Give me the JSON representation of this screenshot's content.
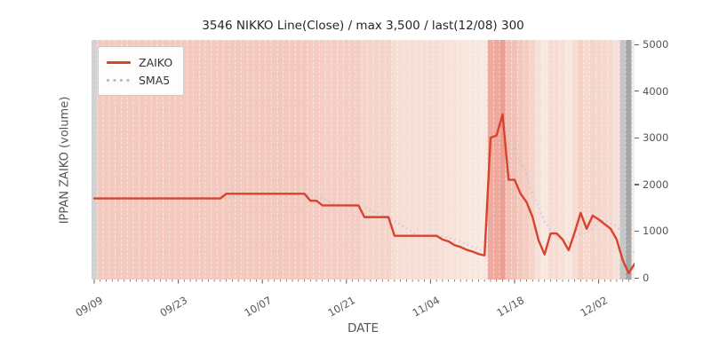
{
  "title": "3546 NIKKO Line(Close) / max 3,500 / last(12/08) 300",
  "axes": {
    "x_label": "DATE",
    "y_label": "IPPAN ZAIKO (volume)"
  },
  "legend": {
    "items": [
      {
        "label": "ZAIKO",
        "color": "#d9432e",
        "style": "solid"
      },
      {
        "label": "SMA5",
        "color": "#a5c8e1",
        "style": "dotted"
      }
    ]
  },
  "colors": {
    "zaiko_line": "#d9432e",
    "sma5_line": "#a5c8e1",
    "band_low": "#f8ede5",
    "band_high": "#ee9e90",
    "band_separator": "rgba(255,255,255,0.55)",
    "tick": "#666666",
    "tick_text": "#545454"
  },
  "chart_data": {
    "type": "line",
    "title": "3546 NIKKO Line(Close) / max 3,500 / last(12/08) 300",
    "xlabel": "DATE",
    "ylabel": "IPPAN ZAIKO (volume)",
    "ylim": [
      0,
      5000
    ],
    "y_tick_labels": [
      "0",
      "1000",
      "2000",
      "3000",
      "4000",
      "5000"
    ],
    "x_tick_labels": [
      "09/09",
      "09/23",
      "10/07",
      "10/21",
      "11/04",
      "11/18",
      "12/02"
    ],
    "x_major_tick_every_days": 14,
    "legend_position": "upper left",
    "grid": false,
    "background": {
      "note": "one vertical band per day, red intensity follows ZAIKO value",
      "gray_day_colors": {
        "0": "#d2d2d2",
        "88": "#c6c6c6",
        "89": "#a6a6a6"
      }
    },
    "x": [
      "09/09",
      "09/10",
      "09/11",
      "09/12",
      "09/13",
      "09/14",
      "09/15",
      "09/16",
      "09/17",
      "09/18",
      "09/19",
      "09/20",
      "09/21",
      "09/22",
      "09/23",
      "09/24",
      "09/25",
      "09/26",
      "09/27",
      "09/28",
      "09/29",
      "09/30",
      "10/01",
      "10/02",
      "10/03",
      "10/04",
      "10/05",
      "10/06",
      "10/07",
      "10/08",
      "10/09",
      "10/10",
      "10/11",
      "10/12",
      "10/13",
      "10/14",
      "10/15",
      "10/16",
      "10/17",
      "10/18",
      "10/19",
      "10/20",
      "10/21",
      "10/22",
      "10/23",
      "10/24",
      "10/25",
      "10/26",
      "10/27",
      "10/28",
      "10/29",
      "10/30",
      "10/31",
      "11/01",
      "11/02",
      "11/03",
      "11/04",
      "11/05",
      "11/06",
      "11/07",
      "11/08",
      "11/09",
      "11/10",
      "11/11",
      "11/12",
      "11/13",
      "11/14",
      "11/15",
      "11/16",
      "11/17",
      "11/18",
      "11/19",
      "11/20",
      "11/21",
      "11/22",
      "11/23",
      "11/24",
      "11/25",
      "11/26",
      "11/27",
      "11/28",
      "11/29",
      "11/30",
      "12/01",
      "12/02",
      "12/03",
      "12/04",
      "12/05",
      "12/06",
      "12/07",
      "12/08"
    ],
    "series": [
      {
        "name": "ZAIKO",
        "values": [
          1700,
          1700,
          1700,
          1700,
          1700,
          1700,
          1700,
          1700,
          1700,
          1700,
          1700,
          1700,
          1700,
          1700,
          1700,
          1700,
          1700,
          1700,
          1700,
          1700,
          1700,
          1700,
          1800,
          1800,
          1800,
          1800,
          1800,
          1800,
          1800,
          1800,
          1800,
          1800,
          1800,
          1800,
          1800,
          1800,
          1650,
          1650,
          1550,
          1550,
          1550,
          1550,
          1550,
          1550,
          1550,
          1300,
          1300,
          1300,
          1300,
          1300,
          900,
          900,
          900,
          900,
          900,
          900,
          900,
          900,
          820,
          780,
          700,
          660,
          600,
          560,
          510,
          480,
          3000,
          3050,
          3500,
          2100,
          2100,
          1800,
          1620,
          1300,
          800,
          500,
          950,
          950,
          820,
          590,
          970,
          1390,
          1050,
          1330,
          1250,
          1150,
          1050,
          820,
          380,
          100,
          300
        ]
      },
      {
        "name": "SMA5",
        "derived": "5-day rolling mean of ZAIKO (first 4 days undefined)"
      }
    ],
    "annotations": {
      "max": "3,500",
      "last_date": "12/08",
      "last_value": 300
    }
  }
}
